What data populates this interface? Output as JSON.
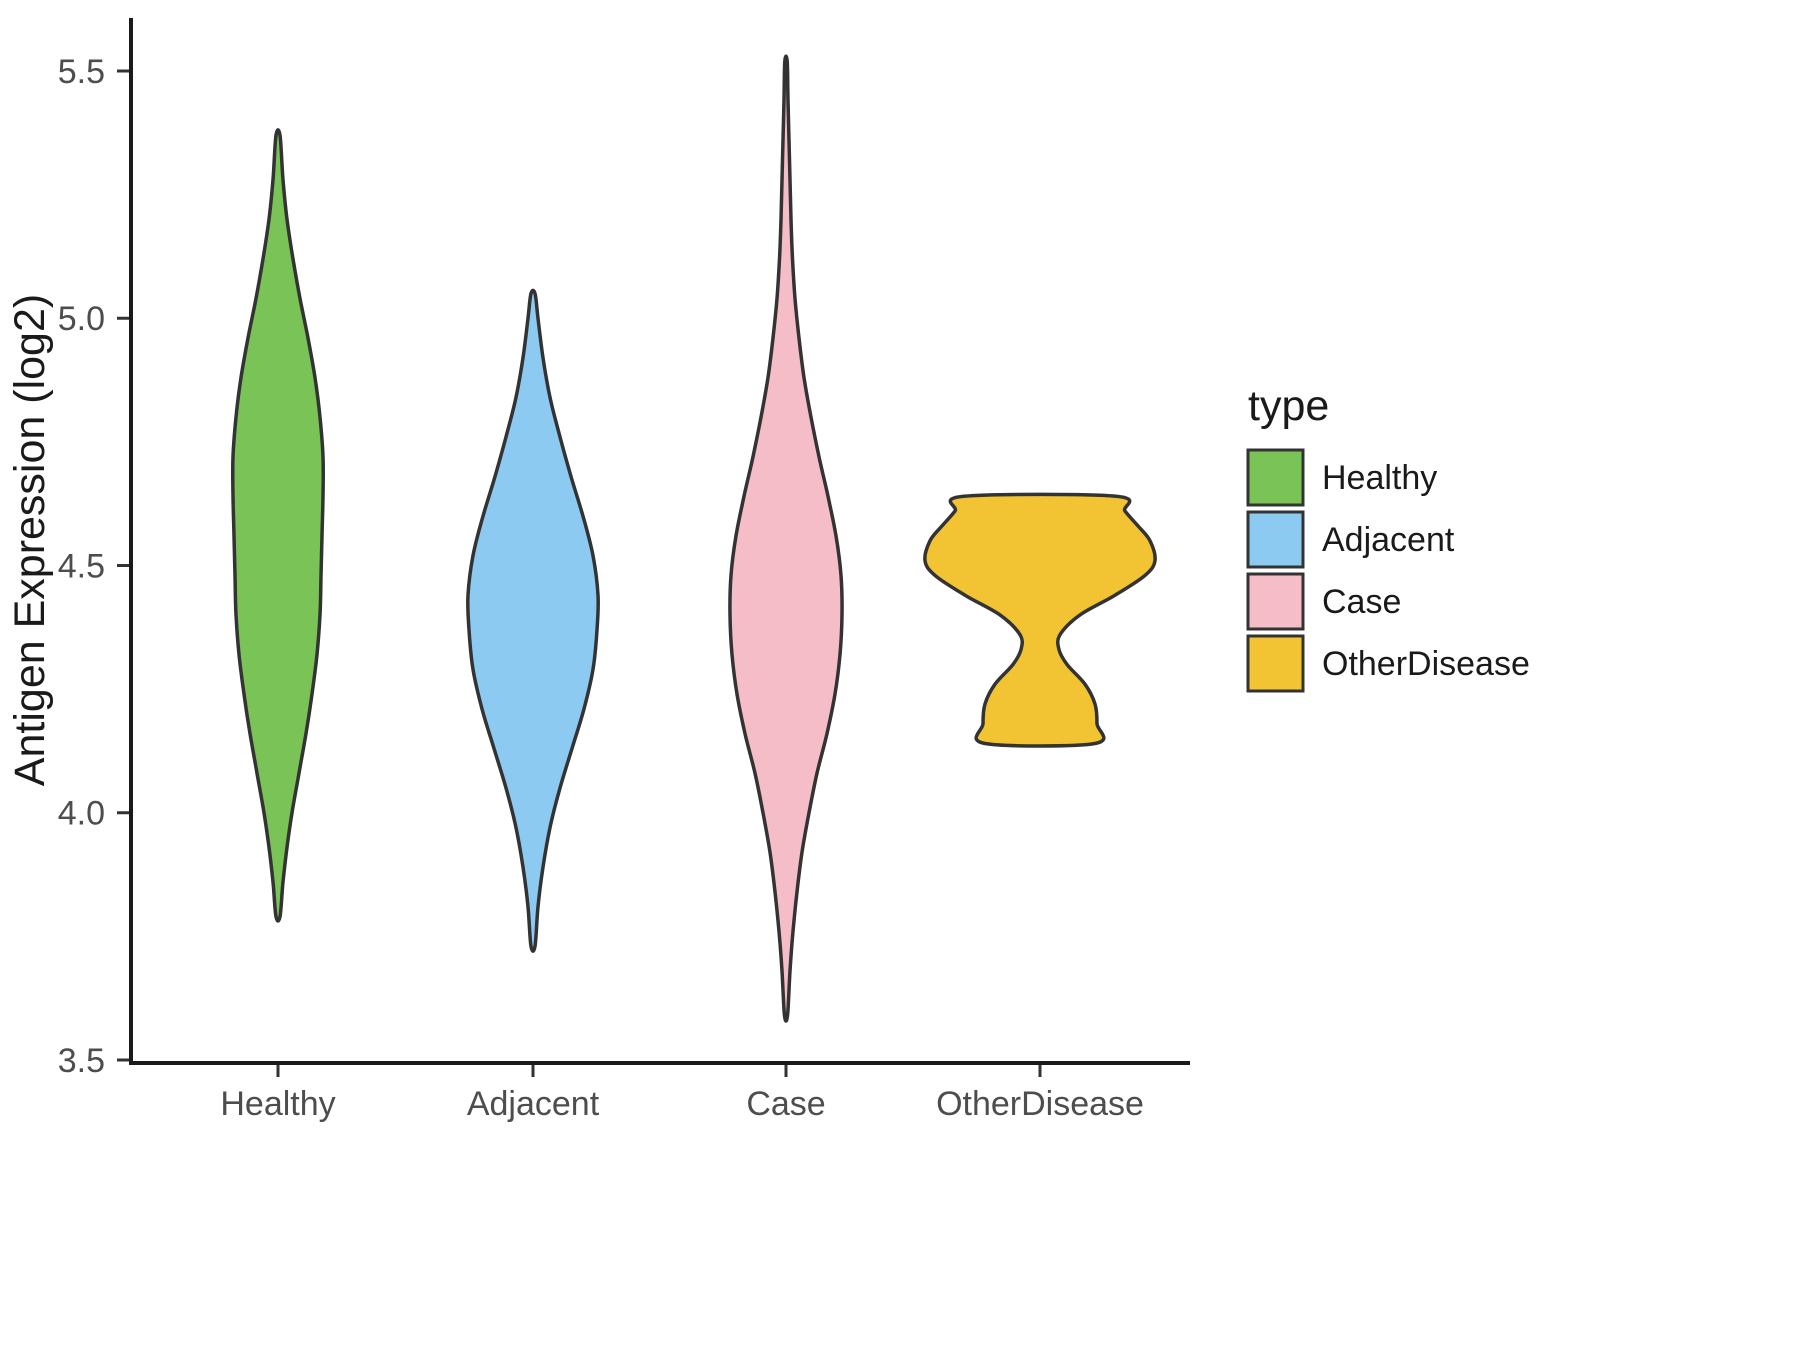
{
  "chart_data": {
    "type": "violin",
    "title": "",
    "xlabel": "",
    "ylabel": "Antigen Expression (log2)",
    "legend_title": "type",
    "legend_position": "right",
    "ylim": [
      3.5,
      5.5
    ],
    "yticks": [
      3.5,
      4.0,
      4.5,
      5.0,
      5.5
    ],
    "ytick_labels": [
      "3.5",
      "4.0",
      "4.5",
      "5.0",
      "5.5"
    ],
    "categories": [
      "Healthy",
      "Adjacent",
      "Case",
      "OtherDisease"
    ],
    "grid": "off",
    "background_color": "#FFFFFF",
    "outline_color": "#333333",
    "series": [
      {
        "name": "Healthy",
        "color": "#7AC356",
        "value_range": [
          3.79,
          5.37
        ],
        "peak_density_at": 4.68,
        "profile": [
          [
            3.79,
            2
          ],
          [
            3.86,
            5
          ],
          [
            3.93,
            9
          ],
          [
            4.0,
            14
          ],
          [
            4.08,
            21
          ],
          [
            4.16,
            28
          ],
          [
            4.24,
            34
          ],
          [
            4.32,
            39
          ],
          [
            4.4,
            42
          ],
          [
            4.48,
            43
          ],
          [
            4.56,
            44
          ],
          [
            4.64,
            45
          ],
          [
            4.72,
            45
          ],
          [
            4.8,
            42
          ],
          [
            4.88,
            37
          ],
          [
            4.96,
            30
          ],
          [
            5.04,
            22
          ],
          [
            5.12,
            15
          ],
          [
            5.2,
            9
          ],
          [
            5.28,
            5
          ],
          [
            5.37,
            2
          ]
        ]
      },
      {
        "name": "Adjacent",
        "color": "#8CCAF1",
        "value_range": [
          3.73,
          5.05
        ],
        "peak_density_at": 4.42,
        "profile": [
          [
            3.73,
            2
          ],
          [
            3.81,
            5
          ],
          [
            3.89,
            10
          ],
          [
            3.97,
            17
          ],
          [
            4.05,
            27
          ],
          [
            4.13,
            39
          ],
          [
            4.21,
            51
          ],
          [
            4.29,
            60
          ],
          [
            4.37,
            64
          ],
          [
            4.44,
            65
          ],
          [
            4.52,
            60
          ],
          [
            4.6,
            50
          ],
          [
            4.68,
            38
          ],
          [
            4.76,
            27
          ],
          [
            4.84,
            17
          ],
          [
            4.92,
            10
          ],
          [
            5.0,
            5
          ],
          [
            5.05,
            2
          ]
        ]
      },
      {
        "name": "Case",
        "color": "#F5BDC8",
        "value_range": [
          3.59,
          5.52
        ],
        "peak_density_at": 4.4,
        "profile": [
          [
            3.59,
            1.5
          ],
          [
            3.68,
            4
          ],
          [
            3.76,
            7
          ],
          [
            3.84,
            11
          ],
          [
            3.92,
            16
          ],
          [
            4.0,
            23
          ],
          [
            4.08,
            31
          ],
          [
            4.16,
            41
          ],
          [
            4.24,
            49
          ],
          [
            4.32,
            54
          ],
          [
            4.4,
            56
          ],
          [
            4.48,
            55
          ],
          [
            4.56,
            50
          ],
          [
            4.64,
            42
          ],
          [
            4.72,
            33
          ],
          [
            4.8,
            25
          ],
          [
            4.88,
            18
          ],
          [
            4.96,
            13
          ],
          [
            5.04,
            9
          ],
          [
            5.12,
            6.5
          ],
          [
            5.2,
            5
          ],
          [
            5.28,
            4
          ],
          [
            5.36,
            3
          ],
          [
            5.44,
            2
          ],
          [
            5.52,
            1.2
          ]
        ]
      },
      {
        "name": "OtherDisease",
        "color": "#F2C434",
        "value_range": [
          4.14,
          4.64
        ],
        "peak_density_at": 4.5,
        "flat_ends": true,
        "profile": [
          [
            4.14,
            55
          ],
          [
            4.18,
            57
          ],
          [
            4.22,
            55
          ],
          [
            4.26,
            45
          ],
          [
            4.3,
            27
          ],
          [
            4.33,
            19
          ],
          [
            4.36,
            20
          ],
          [
            4.4,
            40
          ],
          [
            4.44,
            75
          ],
          [
            4.48,
            105
          ],
          [
            4.51,
            115
          ],
          [
            4.55,
            110
          ],
          [
            4.58,
            98
          ],
          [
            4.61,
            85
          ],
          [
            4.64,
            76
          ]
        ]
      }
    ]
  }
}
